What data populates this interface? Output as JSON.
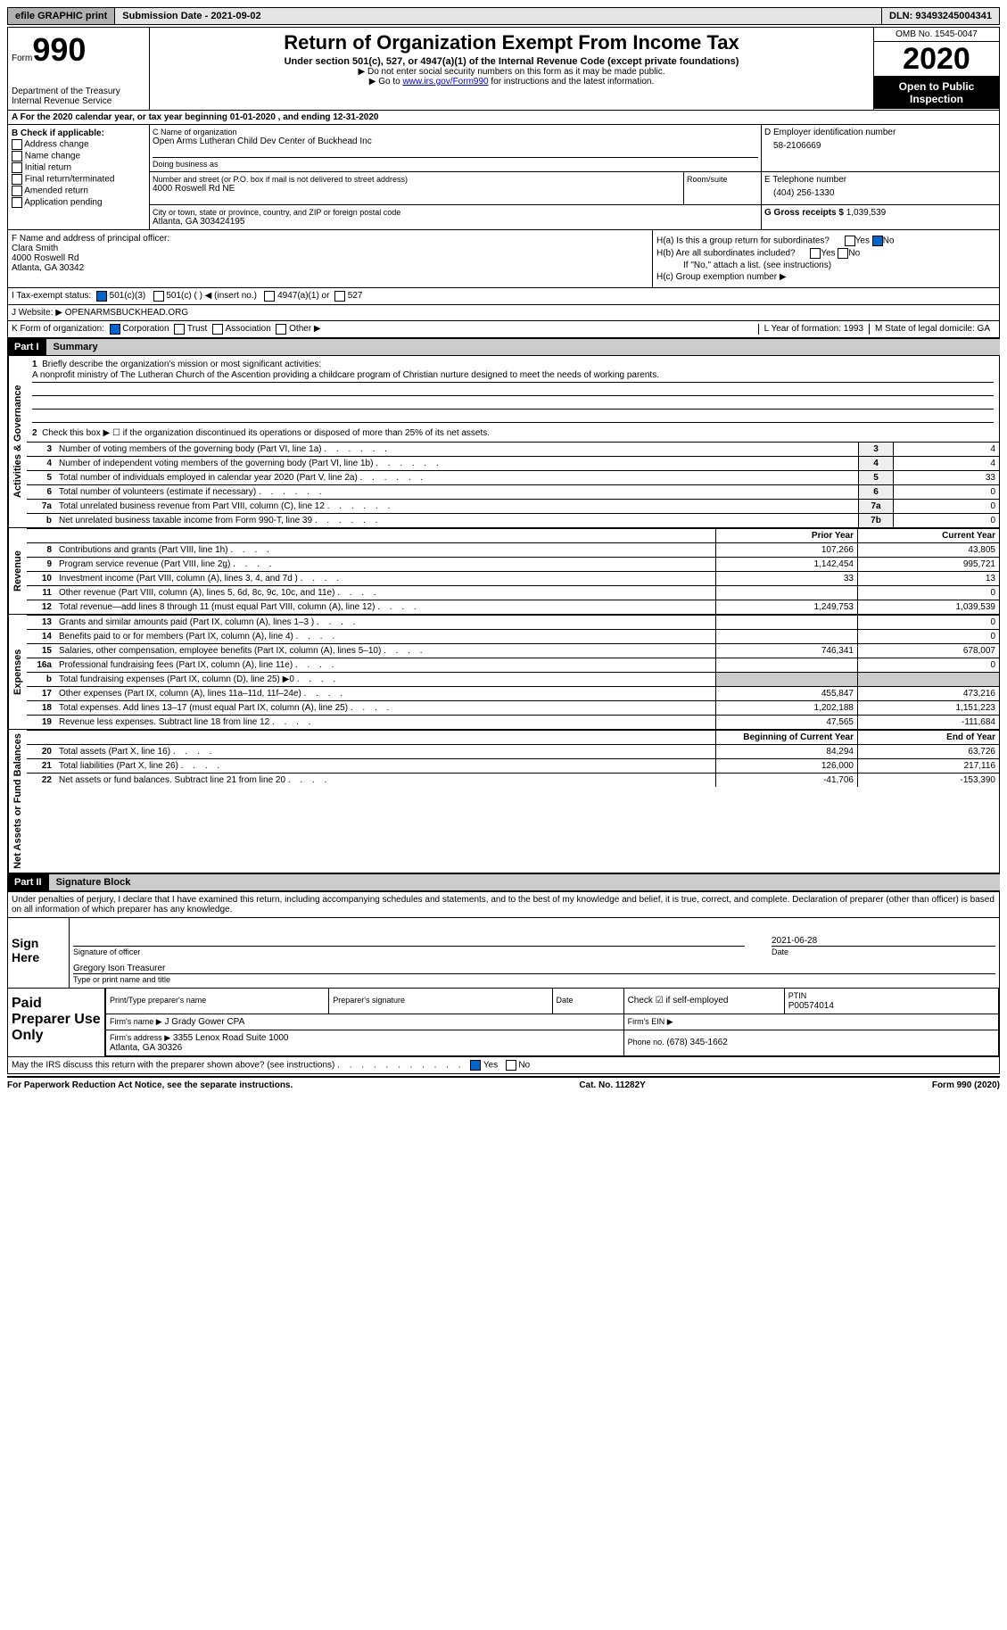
{
  "topbar": {
    "efile": "efile GRAPHIC print",
    "submission": "Submission Date - 2021-09-02",
    "dln": "DLN: 93493245004341"
  },
  "header": {
    "form_label": "Form",
    "form_num": "990",
    "dept": "Department of the Treasury\nInternal Revenue Service",
    "title": "Return of Organization Exempt From Income Tax",
    "sub1": "Under section 501(c), 527, or 4947(a)(1) of the Internal Revenue Code (except private foundations)",
    "sub2a": "▶ Do not enter social security numbers on this form as it may be made public.",
    "sub2b_pre": "▶ Go to ",
    "sub2b_link": "www.irs.gov/Form990",
    "sub2b_post": " for instructions and the latest information.",
    "omb": "OMB No. 1545-0047",
    "year": "2020",
    "open": "Open to Public Inspection"
  },
  "row_a": "A  For the 2020 calendar year, or tax year beginning 01-01-2020    , and ending 12-31-2020",
  "col_b": {
    "label": "B Check if applicable:",
    "opts": [
      "Address change",
      "Name change",
      "Initial return",
      "Final return/terminated",
      "Amended return",
      "Application pending"
    ]
  },
  "org": {
    "name_lbl": "C Name of organization",
    "name": "Open Arms Lutheran Child Dev Center of Buckhead Inc",
    "dba_lbl": "Doing business as",
    "addr_lbl": "Number and street (or P.O. box if mail is not delivered to street address)",
    "addr": "4000 Roswell Rd NE",
    "room_lbl": "Room/suite",
    "city_lbl": "City or town, state or province, country, and ZIP or foreign postal code",
    "city": "Atlanta, GA   303424195"
  },
  "right_col": {
    "ein_lbl": "D Employer identification number",
    "ein": "58-2106669",
    "phone_lbl": "E Telephone number",
    "phone": "(404) 256-1330",
    "gross_lbl": "G Gross receipts $",
    "gross": "1,039,539"
  },
  "officer": {
    "lbl": "F  Name and address of principal officer:",
    "name": "Clara Smith",
    "addr1": "4000 Roswell Rd",
    "addr2": "Atlanta, GA   30342"
  },
  "h": {
    "a": "H(a)  Is this a group return for subordinates?",
    "b": "H(b)  Are all subordinates included?",
    "b_note": "If \"No,\" attach a list. (see instructions)",
    "c": "H(c)  Group exemption number ▶"
  },
  "row_i": {
    "label": "I   Tax-exempt status:",
    "opts": [
      "501(c)(3)",
      "501(c) (   ) ◀ (insert no.)",
      "4947(a)(1) or",
      "527"
    ]
  },
  "row_j": {
    "label": "J   Website: ▶",
    "val": "OPENARMSBUCKHEAD.ORG"
  },
  "row_k": {
    "label": "K Form of organization:",
    "opts": [
      "Corporation",
      "Trust",
      "Association",
      "Other ▶"
    ],
    "l": "L Year of formation: 1993",
    "m": "M State of legal domicile: GA"
  },
  "part1": {
    "hdr": "Part I",
    "title": "Summary",
    "q1": "Briefly describe the organization's mission or most significant activities:",
    "mission": "A nonprofit ministry of The Lutheran Church of the Ascention providing a childcare program of Christian nurture designed to meet the needs of working parents.",
    "q2": "Check this box ▶ ☐  if the organization discontinued its operations or disposed of more than 25% of its net assets.",
    "lines_gov": [
      {
        "n": "3",
        "t": "Number of voting members of the governing body (Part VI, line 1a)",
        "box": "3",
        "v": "4"
      },
      {
        "n": "4",
        "t": "Number of independent voting members of the governing body (Part VI, line 1b)",
        "box": "4",
        "v": "4"
      },
      {
        "n": "5",
        "t": "Total number of individuals employed in calendar year 2020 (Part V, line 2a)",
        "box": "5",
        "v": "33"
      },
      {
        "n": "6",
        "t": "Total number of volunteers (estimate if necessary)",
        "box": "6",
        "v": "0"
      },
      {
        "n": "7a",
        "t": "Total unrelated business revenue from Part VIII, column (C), line 12",
        "box": "7a",
        "v": "0"
      },
      {
        "n": "b",
        "t": "Net unrelated business taxable income from Form 990-T, line 39",
        "box": "7b",
        "v": "0"
      }
    ],
    "col_py": "Prior Year",
    "col_cy": "Current Year",
    "lines_rev": [
      {
        "n": "8",
        "t": "Contributions and grants (Part VIII, line 1h)",
        "py": "107,266",
        "cy": "43,805"
      },
      {
        "n": "9",
        "t": "Program service revenue (Part VIII, line 2g)",
        "py": "1,142,454",
        "cy": "995,721"
      },
      {
        "n": "10",
        "t": "Investment income (Part VIII, column (A), lines 3, 4, and 7d )",
        "py": "33",
        "cy": "13"
      },
      {
        "n": "11",
        "t": "Other revenue (Part VIII, column (A), lines 5, 6d, 8c, 9c, 10c, and 11e)",
        "py": "",
        "cy": "0"
      },
      {
        "n": "12",
        "t": "Total revenue—add lines 8 through 11 (must equal Part VIII, column (A), line 12)",
        "py": "1,249,753",
        "cy": "1,039,539"
      }
    ],
    "lines_exp": [
      {
        "n": "13",
        "t": "Grants and similar amounts paid (Part IX, column (A), lines 1–3 )",
        "py": "",
        "cy": "0"
      },
      {
        "n": "14",
        "t": "Benefits paid to or for members (Part IX, column (A), line 4)",
        "py": "",
        "cy": "0"
      },
      {
        "n": "15",
        "t": "Salaries, other compensation, employee benefits (Part IX, column (A), lines 5–10)",
        "py": "746,341",
        "cy": "678,007"
      },
      {
        "n": "16a",
        "t": "Professional fundraising fees (Part IX, column (A), line 11e)",
        "py": "",
        "cy": "0"
      },
      {
        "n": "b",
        "t": "Total fundraising expenses (Part IX, column (D), line 25) ▶0",
        "py": "shaded",
        "cy": "shaded"
      },
      {
        "n": "17",
        "t": "Other expenses (Part IX, column (A), lines 11a–11d, 11f–24e)",
        "py": "455,847",
        "cy": "473,216"
      },
      {
        "n": "18",
        "t": "Total expenses. Add lines 13–17 (must equal Part IX, column (A), line 25)",
        "py": "1,202,188",
        "cy": "1,151,223"
      },
      {
        "n": "19",
        "t": "Revenue less expenses. Subtract line 18 from line 12",
        "py": "47,565",
        "cy": "-111,684"
      }
    ],
    "col_bcy": "Beginning of Current Year",
    "col_eoy": "End of Year",
    "lines_net": [
      {
        "n": "20",
        "t": "Total assets (Part X, line 16)",
        "py": "84,294",
        "cy": "63,726"
      },
      {
        "n": "21",
        "t": "Total liabilities (Part X, line 26)",
        "py": "126,000",
        "cy": "217,116"
      },
      {
        "n": "22",
        "t": "Net assets or fund balances. Subtract line 21 from line 20",
        "py": "-41,706",
        "cy": "-153,390"
      }
    ]
  },
  "part2": {
    "hdr": "Part II",
    "title": "Signature Block",
    "decl": "Under penalties of perjury, I declare that I have examined this return, including accompanying schedules and statements, and to the best of my knowledge and belief, it is true, correct, and complete. Declaration of preparer (other than officer) is based on all information of which preparer has any knowledge.",
    "sign_here": "Sign Here",
    "sig_date": "2021-06-28",
    "sig_officer_lbl": "Signature of officer",
    "date_lbl": "Date",
    "officer_name": "Gregory Ison  Treasurer",
    "officer_name_lbl": "Type or print name and title",
    "paid": "Paid Preparer Use Only",
    "prep_name_lbl": "Print/Type preparer's name",
    "prep_sig_lbl": "Preparer's signature",
    "prep_date_lbl": "Date",
    "self_emp": "Check ☑ if self-employed",
    "ptin_lbl": "PTIN",
    "ptin": "P00574014",
    "firm_name_lbl": "Firm's name    ▶",
    "firm_name": "J Grady Gower CPA",
    "firm_ein_lbl": "Firm's EIN ▶",
    "firm_addr_lbl": "Firm's address ▶",
    "firm_addr": "3355 Lenox Road Suite 1000\nAtlanta, GA   30326",
    "firm_phone_lbl": "Phone no.",
    "firm_phone": "(678) 345-1662",
    "discuss": "May the IRS discuss this return with the preparer shown above? (see instructions)"
  },
  "footer": {
    "pra": "For Paperwork Reduction Act Notice, see the separate instructions.",
    "cat": "Cat. No. 11282Y",
    "form": "Form 990 (2020)"
  },
  "vtabs": {
    "gov": "Activities & Governance",
    "rev": "Revenue",
    "exp": "Expenses",
    "net": "Net Assets or Fund Balances"
  }
}
